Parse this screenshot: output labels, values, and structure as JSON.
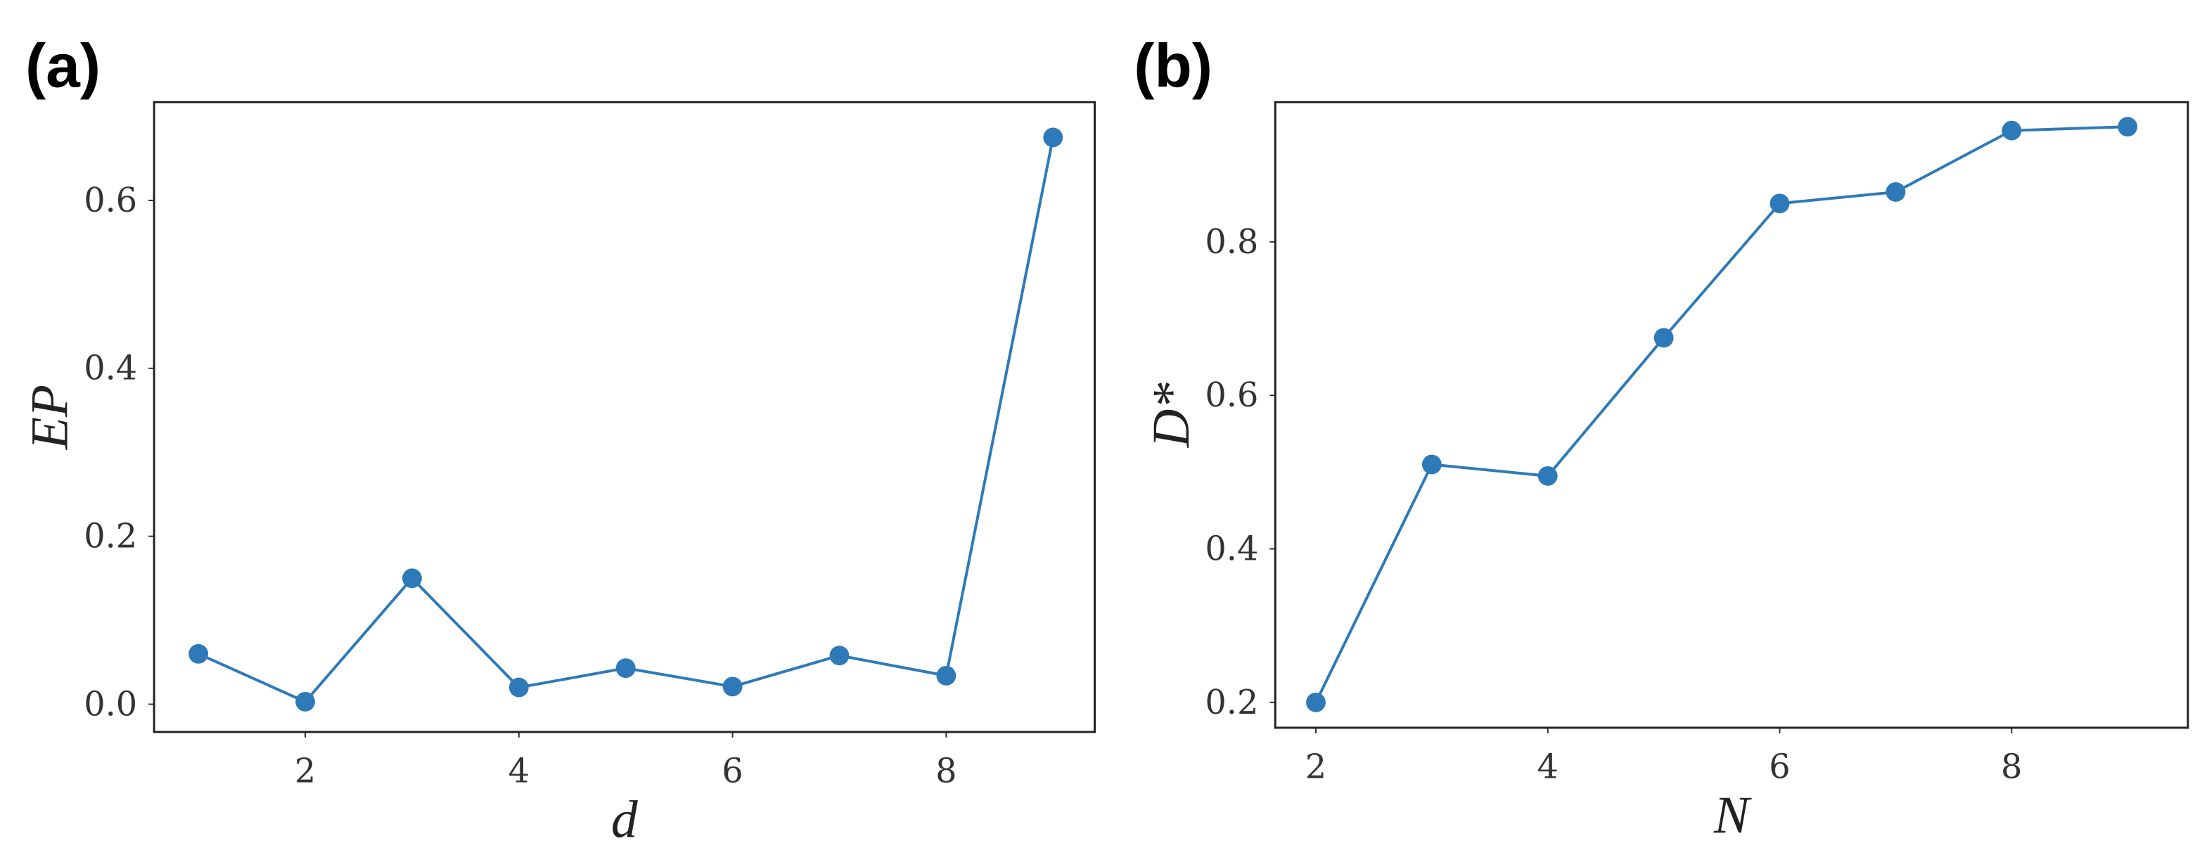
{
  "chart_data": [
    {
      "type": "line",
      "panel_label": "(a)",
      "x_label": "d",
      "y_label": "EP",
      "x": [
        1,
        2,
        3,
        4,
        5,
        6,
        7,
        8,
        9
      ],
      "series": [
        {
          "color": "#2e7ab8",
          "values": [
            0.06,
            0.003,
            0.15,
            0.02,
            0.043,
            0.021,
            0.058,
            0.034,
            0.675
          ]
        }
      ],
      "xlim": [
        0.585,
        9.39
      ],
      "xticks": [
        2,
        4,
        6,
        8
      ],
      "ylim": [
        -0.033,
        0.717
      ],
      "yticks": [
        0.0,
        0.2,
        0.4,
        0.6
      ],
      "grid": false
    },
    {
      "type": "line",
      "panel_label": "(b)",
      "x_label": "N",
      "y_label": "D*",
      "x": [
        2,
        3,
        4,
        5,
        6,
        7,
        8,
        9
      ],
      "series": [
        {
          "color": "#2e7ab8",
          "values": [
            0.2,
            0.51,
            0.495,
            0.675,
            0.85,
            0.865,
            0.945,
            0.95
          ]
        }
      ],
      "xlim": [
        1.65,
        9.52
      ],
      "xticks": [
        2,
        4,
        6,
        8
      ],
      "ylim": [
        0.167,
        0.982
      ],
      "yticks": [
        0.2,
        0.4,
        0.6,
        0.8
      ],
      "grid": false
    }
  ]
}
